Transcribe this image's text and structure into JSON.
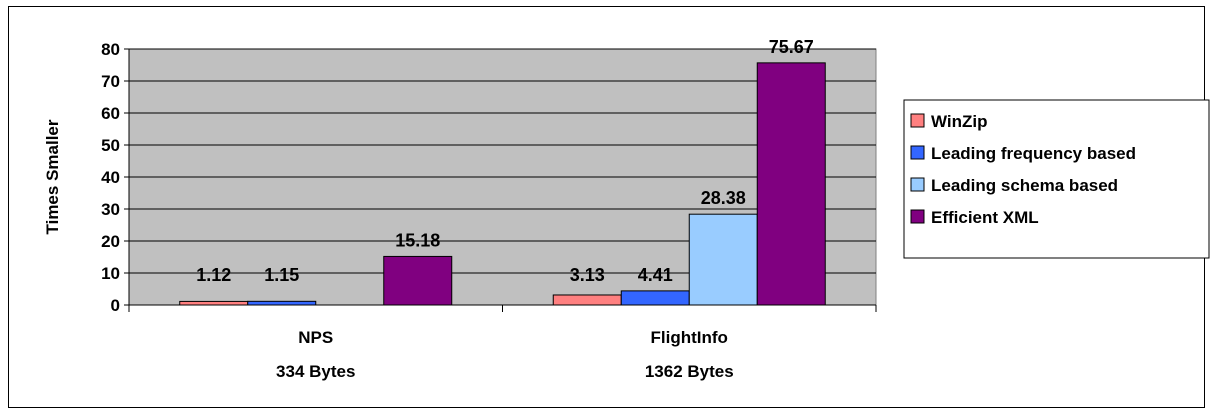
{
  "chart_data": {
    "type": "bar",
    "title": "",
    "ylabel": "Times Smaller",
    "xlabel": "",
    "ylim": [
      0,
      80
    ],
    "yticks": [
      0,
      10,
      20,
      30,
      40,
      50,
      60,
      70,
      80
    ],
    "grid": true,
    "legend_position": "right",
    "categories": [
      {
        "name": "NPS",
        "sub": "334 Bytes"
      },
      {
        "name": "FlightInfo",
        "sub": "1362 Bytes"
      }
    ],
    "series": [
      {
        "name": "WinZip",
        "color": "#ff8080",
        "values": [
          1.12,
          3.13
        ]
      },
      {
        "name": "Leading frequency based",
        "color": "#3366ff",
        "values": [
          1.15,
          4.41
        ]
      },
      {
        "name": "Leading schema based",
        "color": "#99ccff",
        "values": [
          null,
          28.38
        ]
      },
      {
        "name": "Efficient XML",
        "color": "#800080",
        "values": [
          15.18,
          75.67
        ]
      }
    ],
    "plot_background": "#c0c0c0"
  }
}
